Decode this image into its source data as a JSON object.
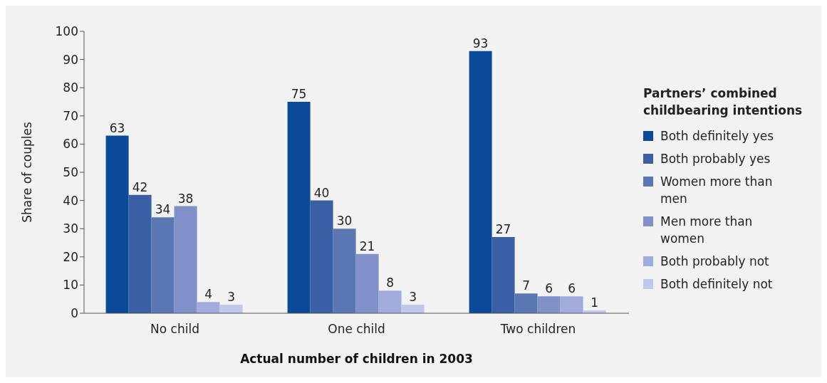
{
  "chart_data": {
    "type": "bar",
    "xlabel": "Actual number of children in 2003",
    "ylabel": "Share of couples",
    "legend_title": "Partners’ combined childbearing intentions",
    "categories": [
      "No child",
      "One child",
      "Two children"
    ],
    "series": [
      {
        "name": "Both definitely yes",
        "color": "#0b4a98",
        "values": [
          63,
          75,
          93
        ]
      },
      {
        "name": "Both probably yes",
        "color": "#3a5fa4",
        "values": [
          42,
          40,
          27
        ]
      },
      {
        "name": "Women more than men",
        "color": "#5a77b4",
        "values": [
          34,
          30,
          7
        ]
      },
      {
        "name": "Men more than women",
        "color": "#7f91c8",
        "values": [
          38,
          21,
          6
        ]
      },
      {
        "name": "Both probably not",
        "color": "#a1acdc",
        "values": [
          4,
          8,
          6
        ]
      },
      {
        "name": "Both definitely not",
        "color": "#c1c8ed",
        "values": [
          3,
          3,
          1
        ]
      }
    ],
    "ylim": [
      0,
      100
    ],
    "yticks": [
      0,
      10,
      20,
      30,
      40,
      50,
      60,
      70,
      80,
      90,
      100
    ],
    "data_labels": true,
    "legend": "right",
    "grid": false
  }
}
